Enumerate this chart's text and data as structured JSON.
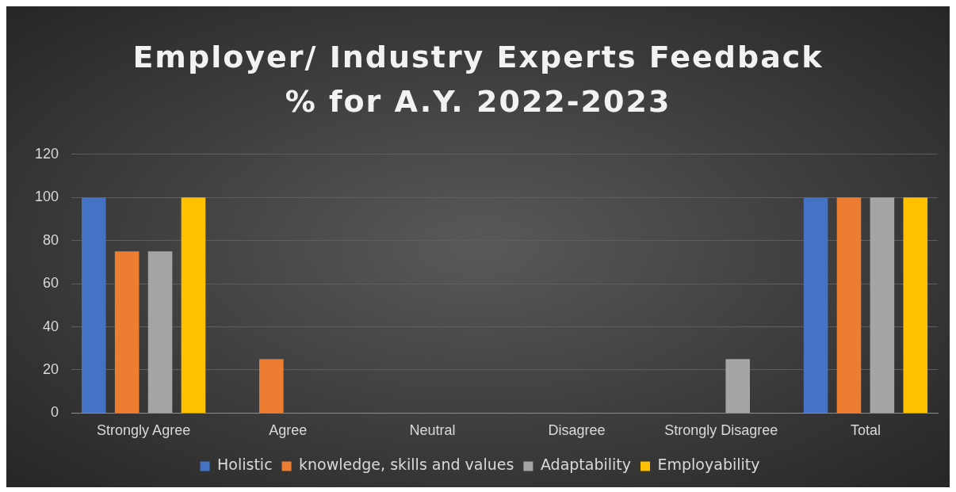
{
  "chart_data": {
    "type": "bar",
    "title": "Employer/ Industry Experts Feedback % for A.Y. 2022-2023",
    "categories": [
      "Strongly Agree",
      "Agree",
      "Neutral",
      "Disagree",
      "Strongly Disagree",
      "Total"
    ],
    "series": [
      {
        "name": "Holistic",
        "color": "#4472c4",
        "values": [
          100,
          0,
          0,
          0,
          0,
          100
        ]
      },
      {
        "name": "knowledge, skills and values",
        "color": "#ed7d31",
        "values": [
          75,
          25,
          0,
          0,
          0,
          100
        ]
      },
      {
        "name": "Adaptability",
        "color": "#a5a5a5",
        "values": [
          75,
          0,
          0,
          0,
          25,
          100
        ]
      },
      {
        "name": "Employability",
        "color": "#ffc000",
        "values": [
          100,
          0,
          0,
          0,
          0,
          100
        ]
      }
    ],
    "ylim": [
      0,
      120
    ],
    "yticks": [
      0,
      20,
      40,
      60,
      80,
      100,
      120
    ],
    "grid": "y",
    "legend": "bottom"
  }
}
